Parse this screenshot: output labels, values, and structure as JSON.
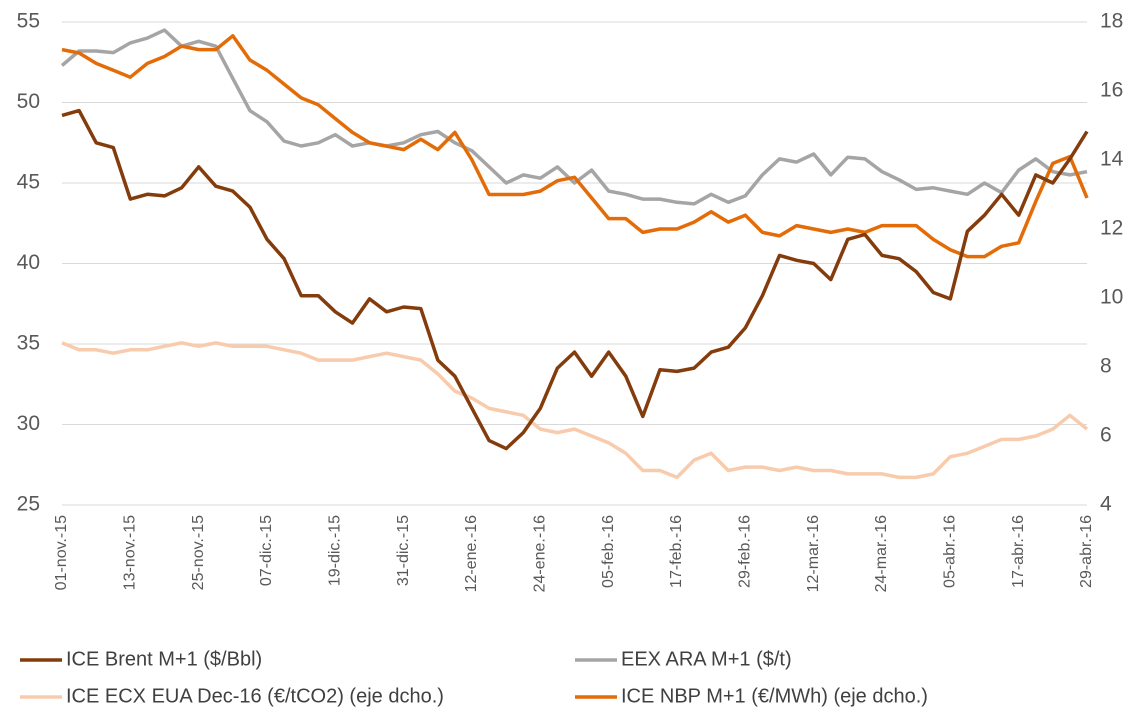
{
  "chart_data": {
    "type": "line",
    "categories": [
      "01-nov.-15",
      null,
      null,
      null,
      "13-nov.-15",
      null,
      null,
      null,
      "25-nov.-15",
      null,
      null,
      null,
      "07-dic.-15",
      null,
      null,
      null,
      "19-dic.-15",
      null,
      null,
      null,
      "31-dic.-15",
      null,
      null,
      null,
      "12-ene.-16",
      null,
      null,
      null,
      "24-ene.-16",
      null,
      null,
      null,
      "05-feb.-16",
      null,
      null,
      null,
      "17-feb.-16",
      null,
      null,
      null,
      "29-feb.-16",
      null,
      null,
      null,
      "12-mar.-16",
      null,
      null,
      null,
      "24-mar.-16",
      null,
      null,
      null,
      "05-abr.-16",
      null,
      null,
      null,
      "17-abr.-16",
      null,
      null,
      null,
      "29-abr.-16"
    ],
    "series": [
      {
        "name": "ICE Brent M+1 ($/Bbl)",
        "color": "#843c0c",
        "values": [
          49.2,
          49.5,
          47.5,
          47.2,
          44,
          44.3,
          44.2,
          44.7,
          46,
          44.8,
          44.5,
          43.5,
          41.5,
          40.3,
          38,
          38,
          37,
          36.3,
          37.8,
          37,
          37.3,
          37.2,
          34,
          33,
          31,
          29,
          28.5,
          29.5,
          31,
          33.5,
          34.5,
          33,
          34.5,
          33,
          30.5,
          33.4,
          33.3,
          33.5,
          34.5,
          34.8,
          36,
          38,
          40.5,
          40.2,
          40,
          39,
          41.5,
          41.8,
          40.5,
          40.3,
          39.5,
          38.2,
          37.8,
          42,
          43,
          44.3,
          43,
          45.5,
          45,
          46.5,
          48.2
        ]
      },
      {
        "name": "EEX ARA M+1 ($/t)",
        "color": "#a5a5a5",
        "values": [
          52.3,
          53.2,
          53.2,
          53.1,
          53.7,
          54,
          54.5,
          53.5,
          53.8,
          53.5,
          51.5,
          49.5,
          48.8,
          47.6,
          47.3,
          47.5,
          48,
          47.3,
          47.5,
          47.3,
          47.5,
          48,
          48.2,
          47.5,
          47,
          46,
          45,
          45.5,
          45.3,
          46,
          45,
          45.8,
          44.5,
          44.3,
          44,
          44,
          43.8,
          43.7,
          44.3,
          43.8,
          44.2,
          45.5,
          46.5,
          46.3,
          46.8,
          45.5,
          46.6,
          46.5,
          45.7,
          45.2,
          44.6,
          44.7,
          44.5,
          44.3,
          45,
          44.4,
          45.8,
          46.5,
          45.7,
          45.5,
          45.7
        ]
      },
      {
        "name": "ICE ECX EUA Dec-16 (€/tCO2) (eje dcho.)",
        "color": "#f8cbad",
        "axis": "y2",
        "values": [
          8.7,
          8.5,
          8.5,
          8.4,
          8.5,
          8.5,
          8.6,
          8.7,
          8.6,
          8.7,
          8.6,
          8.6,
          8.6,
          8.5,
          8.4,
          8.2,
          8.2,
          8.2,
          8.3,
          8.4,
          8.3,
          8.2,
          7.8,
          7.3,
          7.1,
          6.8,
          6.7,
          6.6,
          6.2,
          6.1,
          6.2,
          6.0,
          5.8,
          5.5,
          5.0,
          5.0,
          4.8,
          5.3,
          5.5,
          5.0,
          5.1,
          5.1,
          5.0,
          5.1,
          5.0,
          5.0,
          4.9,
          4.9,
          4.9,
          4.8,
          4.8,
          4.9,
          5.4,
          5.5,
          5.7,
          5.9,
          5.9,
          6.0,
          6.2,
          6.6,
          6.2
        ]
      },
      {
        "name": "ICE NBP M+1 (€/MWh) (eje dcho.)",
        "color": "#e36c09",
        "axis": "y2",
        "values": [
          17.2,
          17.1,
          16.8,
          16.6,
          16.4,
          16.8,
          17,
          17.3,
          17.2,
          17.2,
          17.6,
          16.9,
          16.6,
          16.2,
          15.8,
          15.6,
          15.2,
          14.8,
          14.5,
          14.4,
          14.3,
          14.6,
          14.3,
          14.8,
          14.0,
          13.0,
          13.0,
          13.0,
          13.1,
          13.4,
          13.5,
          12.9,
          12.3,
          12.3,
          11.9,
          12.0,
          12.0,
          12.2,
          12.5,
          12.2,
          12.4,
          11.9,
          11.8,
          12.1,
          12.0,
          11.9,
          12.0,
          11.9,
          12.1,
          12.1,
          12.1,
          11.7,
          11.4,
          11.2,
          11.2,
          11.5,
          11.6,
          12.8,
          13.9,
          14.1,
          12.9
        ]
      }
    ],
    "ylim": [
      25,
      55
    ],
    "yticks": [
      25,
      30,
      35,
      40,
      45,
      50,
      55
    ],
    "y2lim": [
      4,
      18
    ],
    "y2ticks": [
      4,
      6,
      8,
      10,
      12,
      14,
      16,
      18
    ],
    "grid": true,
    "legend": "bottom"
  }
}
